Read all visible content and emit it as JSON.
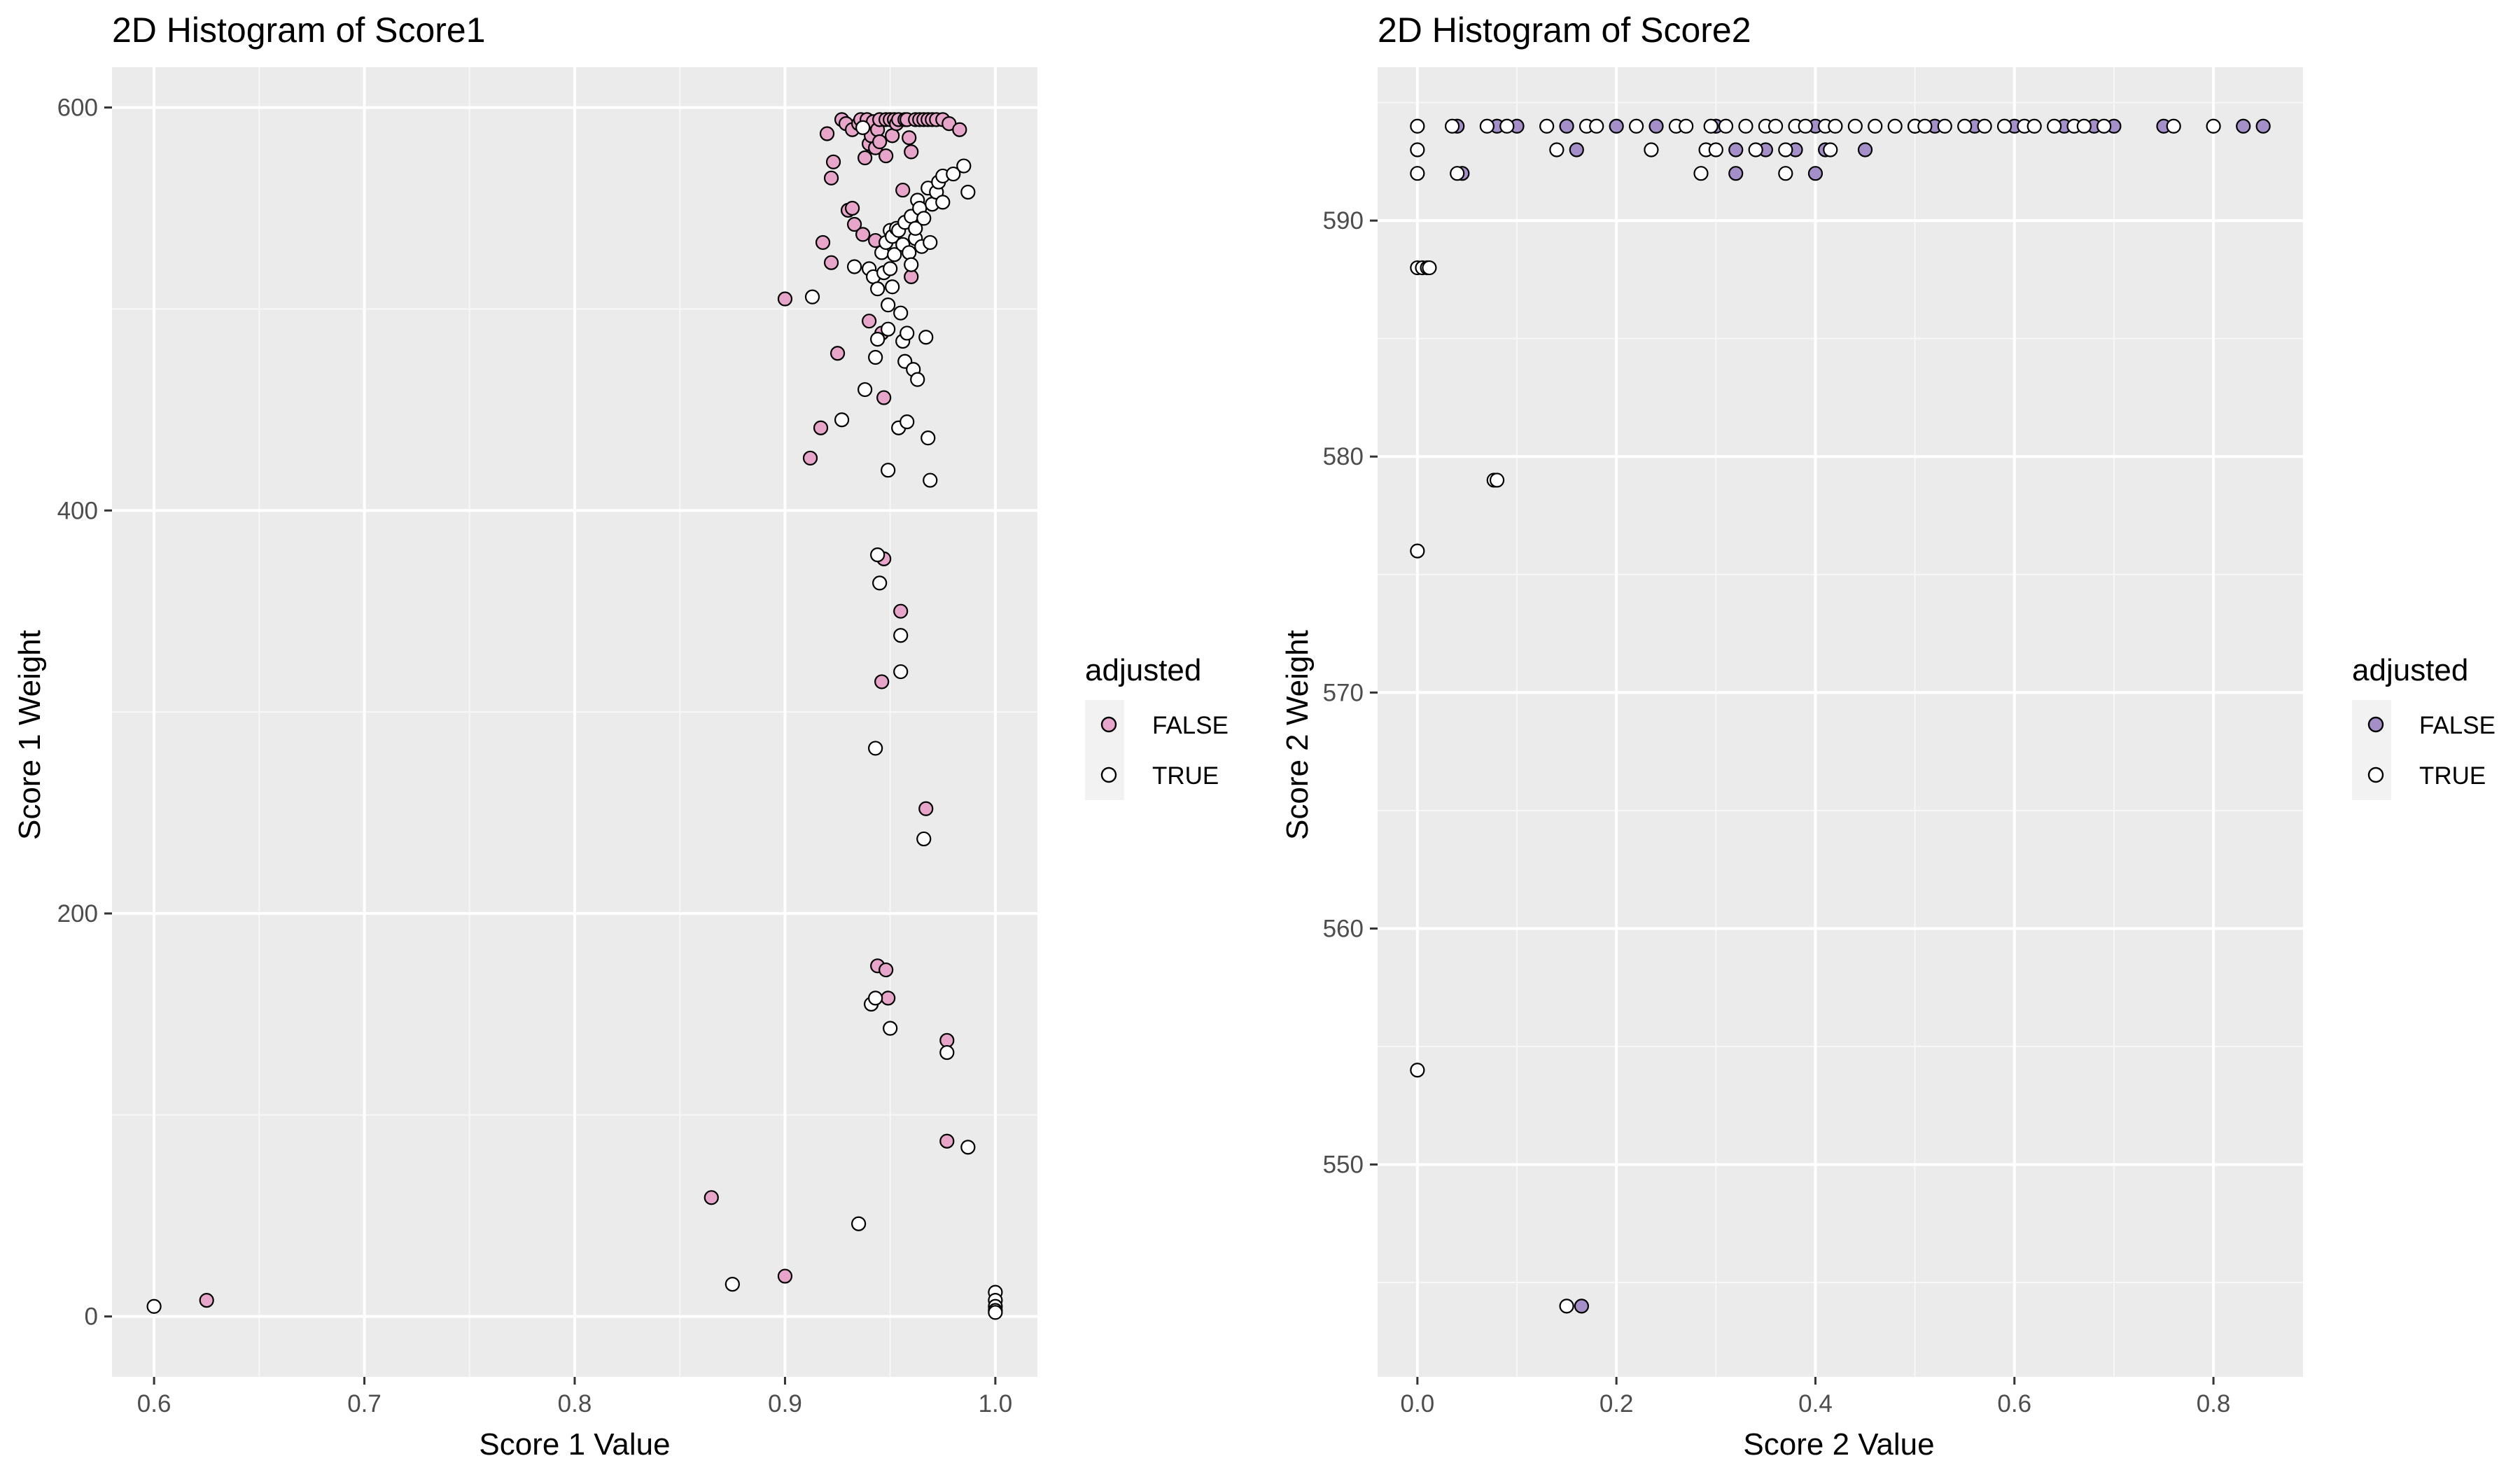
{
  "chart_data": [
    {
      "type": "scatter",
      "title": "2D Histogram of Score1",
      "xlabel": "Score 1 Value",
      "ylabel": "Score 1 Weight",
      "xlim": [
        0.58,
        1.02
      ],
      "ylim": [
        -30,
        620
      ],
      "x_ticks": [
        0.6,
        0.7,
        0.8,
        0.9,
        1.0
      ],
      "x_tick_labels": [
        "0.6",
        "0.7",
        "0.8",
        "0.9",
        "1.0"
      ],
      "y_ticks": [
        0,
        200,
        400,
        600
      ],
      "y_tick_labels": [
        "0",
        "200",
        "400",
        "600"
      ],
      "grid": true,
      "legend": {
        "title": "adjusted",
        "position": "right"
      },
      "series": [
        {
          "name": "FALSE",
          "color": "#e7a6c9",
          "points": [
            [
              0.625,
              8
            ],
            [
              0.865,
              59
            ],
            [
              0.9,
              20
            ],
            [
              0.9,
              505
            ],
            [
              0.912,
              426
            ],
            [
              0.917,
              441
            ],
            [
              0.918,
              533
            ],
            [
              0.92,
              587
            ],
            [
              0.922,
              565
            ],
            [
              0.922,
              523
            ],
            [
              0.923,
              573
            ],
            [
              0.925,
              478
            ],
            [
              0.927,
              594
            ],
            [
              0.929,
              592
            ],
            [
              0.93,
              549
            ],
            [
              0.932,
              550
            ],
            [
              0.932,
              589
            ],
            [
              0.933,
              542
            ],
            [
              0.935,
              592
            ],
            [
              0.936,
              594
            ],
            [
              0.937,
              537
            ],
            [
              0.938,
              575
            ],
            [
              0.939,
              594
            ],
            [
              0.94,
              582
            ],
            [
              0.94,
              494
            ],
            [
              0.941,
              586
            ],
            [
              0.942,
              593
            ],
            [
              0.943,
              580
            ],
            [
              0.943,
              534
            ],
            [
              0.944,
              589
            ],
            [
              0.944,
              174
            ],
            [
              0.945,
              594
            ],
            [
              0.945,
              583
            ],
            [
              0.946,
              315
            ],
            [
              0.946,
              488
            ],
            [
              0.947,
              376
            ],
            [
              0.947,
              456
            ],
            [
              0.948,
              594
            ],
            [
              0.948,
              576
            ],
            [
              0.948,
              172
            ],
            [
              0.949,
              158
            ],
            [
              0.95,
              594
            ],
            [
              0.951,
              586
            ],
            [
              0.952,
              594
            ],
            [
              0.953,
              592
            ],
            [
              0.954,
              594
            ],
            [
              0.955,
              350
            ],
            [
              0.956,
              559
            ],
            [
              0.957,
              594
            ],
            [
              0.958,
              594
            ],
            [
              0.959,
              585
            ],
            [
              0.96,
              578
            ],
            [
              0.96,
              516
            ],
            [
              0.962,
              594
            ],
            [
              0.964,
              594
            ],
            [
              0.966,
              594
            ],
            [
              0.967,
              252
            ],
            [
              0.968,
              594
            ],
            [
              0.97,
              594
            ],
            [
              0.972,
              594
            ],
            [
              0.975,
              594
            ],
            [
              0.977,
              137
            ],
            [
              0.977,
              87
            ],
            [
              0.978,
              592
            ],
            [
              0.983,
              589
            ]
          ]
        },
        {
          "name": "TRUE",
          "color": "#ffffff",
          "points": [
            [
              0.6,
              5
            ],
            [
              0.875,
              16
            ],
            [
              0.913,
              506
            ],
            [
              0.927,
              445
            ],
            [
              0.933,
              521
            ],
            [
              0.935,
              46
            ],
            [
              0.937,
              590
            ],
            [
              0.938,
              460
            ],
            [
              0.94,
              520
            ],
            [
              0.941,
              155
            ],
            [
              0.942,
              516
            ],
            [
              0.943,
              158
            ],
            [
              0.943,
              282
            ],
            [
              0.943,
              476
            ],
            [
              0.944,
              485
            ],
            [
              0.944,
              510
            ],
            [
              0.944,
              378
            ],
            [
              0.945,
              364
            ],
            [
              0.946,
              528
            ],
            [
              0.947,
              518
            ],
            [
              0.948,
              533
            ],
            [
              0.949,
              420
            ],
            [
              0.949,
              490
            ],
            [
              0.949,
              502
            ],
            [
              0.95,
              143
            ],
            [
              0.95,
              539
            ],
            [
              0.95,
              520
            ],
            [
              0.951,
              536
            ],
            [
              0.951,
              511
            ],
            [
              0.952,
              527
            ],
            [
              0.953,
              540
            ],
            [
              0.954,
              539
            ],
            [
              0.954,
              441
            ],
            [
              0.955,
              498
            ],
            [
              0.955,
              338
            ],
            [
              0.955,
              320
            ],
            [
              0.956,
              532
            ],
            [
              0.956,
              484
            ],
            [
              0.957,
              543
            ],
            [
              0.957,
              474
            ],
            [
              0.958,
              488
            ],
            [
              0.958,
              444
            ],
            [
              0.959,
              528
            ],
            [
              0.96,
              546
            ],
            [
              0.96,
              522
            ],
            [
              0.961,
              470
            ],
            [
              0.962,
              535
            ],
            [
              0.962,
              540
            ],
            [
              0.963,
              554
            ],
            [
              0.963,
              465
            ],
            [
              0.964,
              550
            ],
            [
              0.965,
              531
            ],
            [
              0.966,
              237
            ],
            [
              0.966,
              545
            ],
            [
              0.967,
              486
            ],
            [
              0.968,
              436
            ],
            [
              0.968,
              560
            ],
            [
              0.969,
              415
            ],
            [
              0.969,
              533
            ],
            [
              0.97,
              552
            ],
            [
              0.972,
              558
            ],
            [
              0.973,
              563
            ],
            [
              0.975,
              553
            ],
            [
              0.975,
              566
            ],
            [
              0.977,
              131
            ],
            [
              0.98,
              567
            ],
            [
              0.985,
              571
            ],
            [
              0.987,
              84
            ],
            [
              0.987,
              558
            ],
            [
              1.0,
              12
            ],
            [
              1.0,
              8
            ],
            [
              1.0,
              5
            ],
            [
              1.0,
              3
            ],
            [
              1.0,
              2
            ]
          ]
        }
      ]
    },
    {
      "type": "scatter",
      "title": "2D Histogram of Score2",
      "xlabel": "Score 2 Value",
      "ylabel": "Score 2 Weight",
      "xlim": [
        -0.04,
        0.89
      ],
      "ylim": [
        541,
        596.5
      ],
      "x_ticks": [
        0.0,
        0.2,
        0.4,
        0.6,
        0.8
      ],
      "x_tick_labels": [
        "0.0",
        "0.2",
        "0.4",
        "0.6",
        "0.8"
      ],
      "y_ticks": [
        550,
        560,
        570,
        580,
        590
      ],
      "y_tick_labels": [
        "550",
        "560",
        "570",
        "580",
        "590"
      ],
      "grid": true,
      "legend": {
        "title": "adjusted",
        "position": "right"
      },
      "series": [
        {
          "name": "FALSE",
          "color": "#a58fc8",
          "points": [
            [
              0.04,
              594
            ],
            [
              0.045,
              592
            ],
            [
              0.08,
              594
            ],
            [
              0.1,
              594
            ],
            [
              0.15,
              594
            ],
            [
              0.16,
              593
            ],
            [
              0.165,
              544
            ],
            [
              0.2,
              594
            ],
            [
              0.24,
              594
            ],
            [
              0.3,
              594
            ],
            [
              0.32,
              593
            ],
            [
              0.32,
              592
            ],
            [
              0.35,
              593
            ],
            [
              0.38,
              593
            ],
            [
              0.4,
              594
            ],
            [
              0.4,
              592
            ],
            [
              0.41,
              593
            ],
            [
              0.45,
              593
            ],
            [
              0.5,
              594
            ],
            [
              0.52,
              594
            ],
            [
              0.56,
              594
            ],
            [
              0.6,
              594
            ],
            [
              0.65,
              594
            ],
            [
              0.68,
              594
            ],
            [
              0.7,
              594
            ],
            [
              0.75,
              594
            ],
            [
              0.83,
              594
            ],
            [
              0.85,
              594
            ]
          ]
        },
        {
          "name": "TRUE",
          "color": "#ffffff",
          "points": [
            [
              0.0,
              594
            ],
            [
              0.0,
              593
            ],
            [
              0.0,
              592
            ],
            [
              0.0,
              588
            ],
            [
              0.0,
              576
            ],
            [
              0.0,
              554
            ],
            [
              0.005,
              588
            ],
            [
              0.01,
              588
            ],
            [
              0.012,
              588
            ],
            [
              0.035,
              594
            ],
            [
              0.04,
              592
            ],
            [
              0.07,
              594
            ],
            [
              0.077,
              579
            ],
            [
              0.08,
              579
            ],
            [
              0.09,
              594
            ],
            [
              0.13,
              594
            ],
            [
              0.14,
              593
            ],
            [
              0.15,
              544
            ],
            [
              0.17,
              594
            ],
            [
              0.18,
              594
            ],
            [
              0.22,
              594
            ],
            [
              0.235,
              593
            ],
            [
              0.26,
              594
            ],
            [
              0.27,
              594
            ],
            [
              0.285,
              592
            ],
            [
              0.29,
              593
            ],
            [
              0.295,
              594
            ],
            [
              0.3,
              593
            ],
            [
              0.31,
              594
            ],
            [
              0.33,
              594
            ],
            [
              0.34,
              593
            ],
            [
              0.35,
              594
            ],
            [
              0.36,
              594
            ],
            [
              0.37,
              592
            ],
            [
              0.37,
              593
            ],
            [
              0.38,
              594
            ],
            [
              0.39,
              594
            ],
            [
              0.41,
              594
            ],
            [
              0.415,
              593
            ],
            [
              0.42,
              594
            ],
            [
              0.44,
              594
            ],
            [
              0.46,
              594
            ],
            [
              0.48,
              594
            ],
            [
              0.5,
              594
            ],
            [
              0.51,
              594
            ],
            [
              0.53,
              594
            ],
            [
              0.55,
              594
            ],
            [
              0.57,
              594
            ],
            [
              0.59,
              594
            ],
            [
              0.61,
              594
            ],
            [
              0.62,
              594
            ],
            [
              0.64,
              594
            ],
            [
              0.66,
              594
            ],
            [
              0.67,
              594
            ],
            [
              0.69,
              594
            ],
            [
              0.76,
              594
            ],
            [
              0.8,
              594
            ]
          ]
        }
      ]
    }
  ]
}
